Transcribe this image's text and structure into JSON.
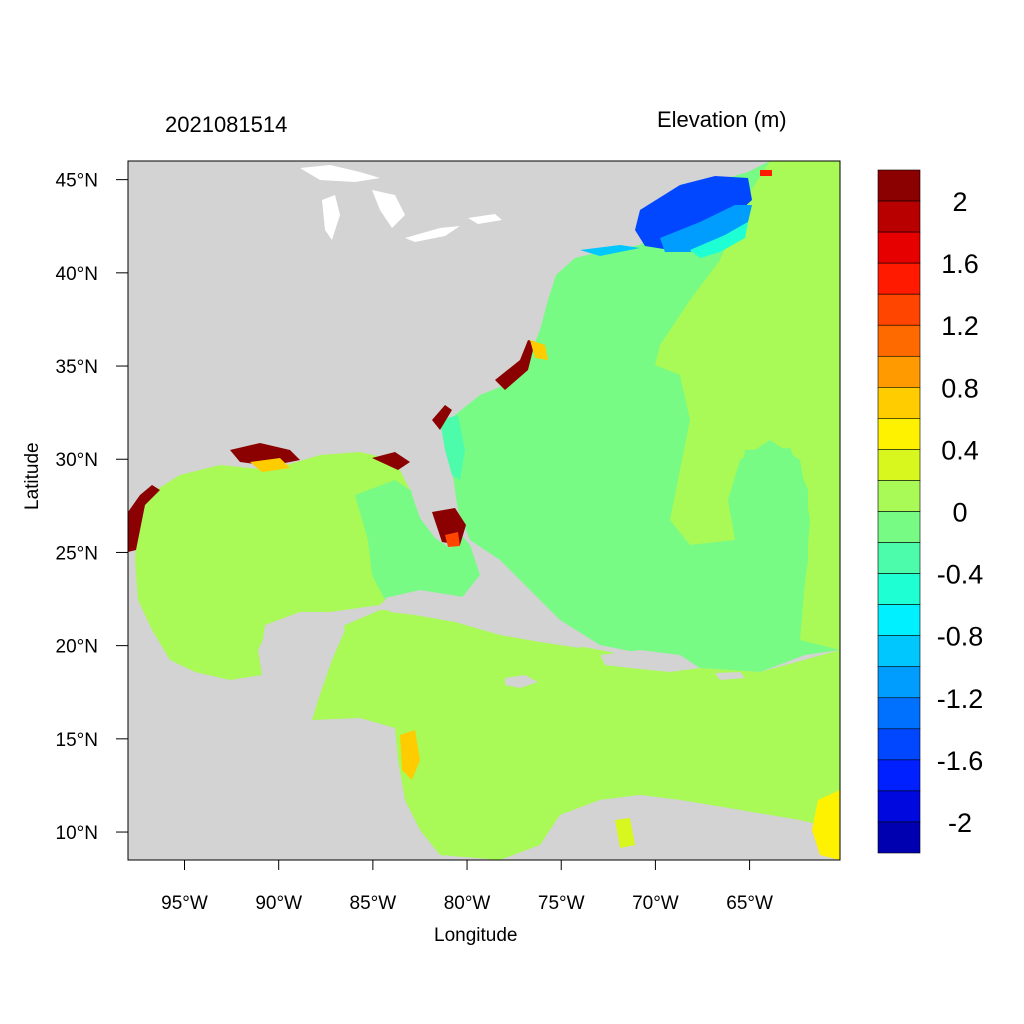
{
  "titles": {
    "left": "2021081514",
    "right": "Elevation (m)"
  },
  "axes": {
    "x_title": "Longitude",
    "y_title": "Latitude",
    "x_ticks": [
      {
        "value": -95,
        "label": "95°W"
      },
      {
        "value": -90,
        "label": "90°W"
      },
      {
        "value": -85,
        "label": "85°W"
      },
      {
        "value": -80,
        "label": "80°W"
      },
      {
        "value": -75,
        "label": "75°W"
      },
      {
        "value": -70,
        "label": "70°W"
      },
      {
        "value": -65,
        "label": "65°W"
      }
    ],
    "y_ticks": [
      {
        "value": 45,
        "label": "45°N"
      },
      {
        "value": 40,
        "label": "40°N"
      },
      {
        "value": 35,
        "label": "35°N"
      },
      {
        "value": 30,
        "label": "30°N"
      },
      {
        "value": 25,
        "label": "25°N"
      },
      {
        "value": 20,
        "label": "20°N"
      },
      {
        "value": 15,
        "label": "15°N"
      },
      {
        "value": 10,
        "label": "10°N"
      }
    ],
    "lon_range": [
      -98,
      -60.2
    ],
    "lat_range": [
      8.5,
      46
    ]
  },
  "colorbar": {
    "colors": [
      "#8b0000",
      "#b80000",
      "#e60000",
      "#ff1a00",
      "#ff4500",
      "#ff6a00",
      "#ff9a00",
      "#ffcc00",
      "#fff200",
      "#d7f71e",
      "#a9f957",
      "#77fb84",
      "#4cfcab",
      "#1effd4",
      "#00f0ff",
      "#00c8ff",
      "#009dff",
      "#0070ff",
      "#0047ff",
      "#0020ff",
      "#0008e0",
      "#0000b0"
    ],
    "labels": [
      "2",
      "1.6",
      "1.2",
      "0.8",
      "0.4",
      "0",
      "-0.4",
      "-0.8",
      "-1.2",
      "-1.6",
      "-2"
    ]
  },
  "map_colors": {
    "land": "#d3d3d3",
    "lake": "#ffffff",
    "water_zero_pos": "#a9f957",
    "water_zero_neg": "#77fb84"
  }
}
